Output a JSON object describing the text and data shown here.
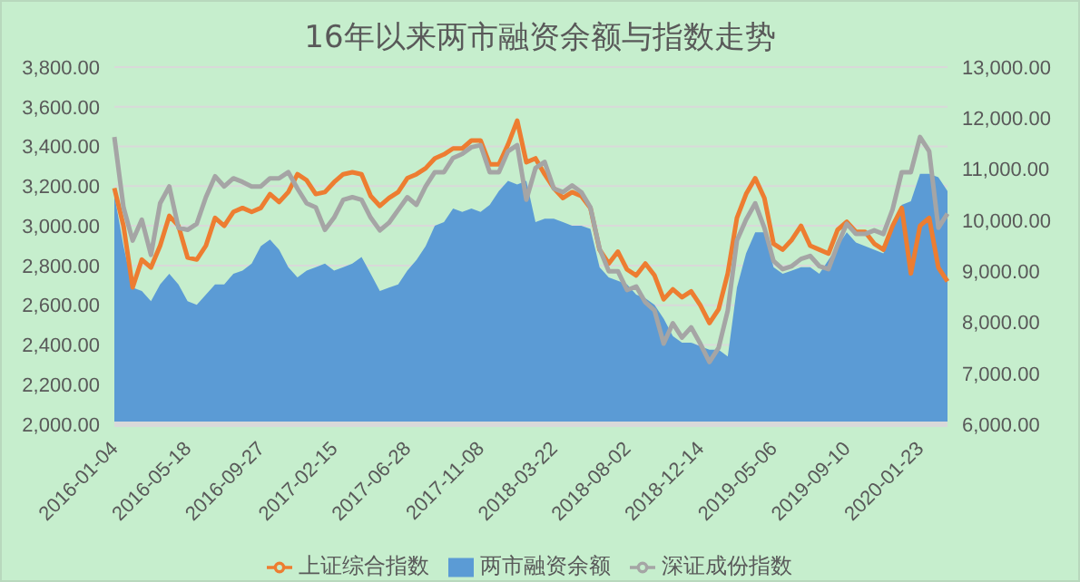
{
  "chart_data": {
    "type": "line",
    "title": "16年以来两市融资余额与指数走势",
    "categories": [
      "2016-01-04",
      null,
      null,
      null,
      null,
      null,
      null,
      null,
      "2016-05-18",
      null,
      null,
      null,
      null,
      null,
      null,
      null,
      "2016-09-27",
      null,
      null,
      null,
      null,
      null,
      null,
      null,
      "2017-02-15",
      null,
      null,
      null,
      null,
      null,
      null,
      null,
      "2017-06-28",
      null,
      null,
      null,
      null,
      null,
      null,
      null,
      "2017-11-08",
      null,
      null,
      null,
      null,
      null,
      null,
      null,
      "2018-03-22",
      null,
      null,
      null,
      null,
      null,
      null,
      null,
      "2018-08-02",
      null,
      null,
      null,
      null,
      null,
      null,
      null,
      "2018-12-14",
      null,
      null,
      null,
      null,
      null,
      null,
      null,
      "2019-05-06",
      null,
      null,
      null,
      null,
      null,
      null,
      null,
      "2019-09-10",
      null,
      null,
      null,
      null,
      null,
      null,
      null,
      "2020-01-23",
      null,
      null,
      null
    ],
    "series": [
      {
        "name": "两市融资余额",
        "type": "area",
        "axis": "y2",
        "color": "#5b9bd5",
        "values": [
          10500,
          9490,
          8680,
          8610,
          8410,
          8740,
          8950,
          8740,
          8410,
          8340,
          8540,
          8740,
          8740,
          8950,
          9010,
          9150,
          9490,
          9620,
          9420,
          9080,
          8880,
          9010,
          9080,
          9150,
          9010,
          9080,
          9150,
          9280,
          8950,
          8610,
          8680,
          8740,
          9010,
          9220,
          9490,
          9890,
          9960,
          10230,
          10160,
          10230,
          10160,
          10300,
          10570,
          10770,
          10700,
          10770,
          9960,
          10030,
          10030,
          9960,
          9890,
          9890,
          9830,
          9080,
          8880,
          8810,
          8740,
          8540,
          8470,
          8340,
          8070,
          7730,
          7600,
          7600,
          7530,
          7460,
          7460,
          7330,
          8680,
          9350,
          9760,
          9760,
          9080,
          8950,
          9010,
          9080,
          9080,
          8950,
          9220,
          9490,
          9760,
          9560,
          9490,
          9420,
          9350,
          9890,
          10300,
          10370,
          10910,
          10910,
          10840,
          10570
        ]
      },
      {
        "name": "上证综合指数",
        "axis": "y",
        "color": "#ed7d31",
        "values": [
          3190,
          3000,
          2690,
          2830,
          2790,
          2900,
          3050,
          3000,
          2840,
          2830,
          2900,
          3040,
          3000,
          3070,
          3090,
          3070,
          3090,
          3160,
          3120,
          3170,
          3260,
          3230,
          3160,
          3170,
          3220,
          3260,
          3270,
          3260,
          3150,
          3100,
          3140,
          3170,
          3240,
          3260,
          3290,
          3340,
          3360,
          3390,
          3390,
          3430,
          3430,
          3310,
          3310,
          3410,
          3530,
          3320,
          3340,
          3260,
          3190,
          3140,
          3170,
          3150,
          3090,
          2880,
          2810,
          2870,
          2780,
          2750,
          2810,
          2750,
          2630,
          2680,
          2640,
          2670,
          2600,
          2510,
          2580,
          2760,
          3040,
          3160,
          3240,
          3140,
          2910,
          2880,
          2930,
          3000,
          2900,
          2880,
          2860,
          2980,
          3020,
          2970,
          2970,
          2910,
          2880,
          3000,
          3090,
          2760,
          3000,
          3040,
          2790,
          2720
        ]
      },
      {
        "name": "深证成份指数",
        "axis": "y2",
        "color": "#a5a5a5",
        "values": [
          11630,
          10250,
          9600,
          10010,
          9320,
          10330,
          10660,
          9850,
          9810,
          9930,
          10450,
          10860,
          10660,
          10820,
          10750,
          10660,
          10660,
          10820,
          10820,
          10940,
          10620,
          10330,
          10250,
          9810,
          10050,
          10400,
          10450,
          10400,
          10050,
          9800,
          9950,
          10200,
          10450,
          10300,
          10660,
          10940,
          10940,
          11220,
          11300,
          11430,
          11470,
          10940,
          10940,
          11350,
          11470,
          10400,
          11020,
          11140,
          10620,
          10550,
          10680,
          10550,
          10250,
          9440,
          9000,
          9000,
          8630,
          8700,
          8390,
          8230,
          7580,
          7980,
          7700,
          7900,
          7580,
          7220,
          7500,
          8230,
          9600,
          10010,
          10330,
          9850,
          9200,
          9040,
          9100,
          9240,
          9300,
          9100,
          9040,
          9520,
          9930,
          9730,
          9730,
          9800,
          9730,
          10210,
          10940,
          10940,
          11630,
          11350,
          9850,
          10130
        ]
      }
    ],
    "ylim": [
      2000,
      3800
    ],
    "yticks": [
      {
        "value": 2000,
        "label": "2,000.00"
      },
      {
        "value": 2200,
        "label": "2,200.00"
      },
      {
        "value": 2400,
        "label": "2,400.00"
      },
      {
        "value": 2600,
        "label": "2,600.00"
      },
      {
        "value": 2800,
        "label": "2,800.00"
      },
      {
        "value": 3000,
        "label": "3,000.00"
      },
      {
        "value": 3200,
        "label": "3,200.00"
      },
      {
        "value": 3400,
        "label": "3,400.00"
      },
      {
        "value": 3600,
        "label": "3,600.00"
      },
      {
        "value": 3800,
        "label": "3,800.00"
      }
    ],
    "y2lim": [
      6000,
      13000
    ],
    "y2ticks": [
      {
        "value": 6000,
        "label": "6,000.00"
      },
      {
        "value": 7000,
        "label": "7,000.00"
      },
      {
        "value": 8000,
        "label": "8,000.00"
      },
      {
        "value": 9000,
        "label": "9,000.00"
      },
      {
        "value": 10000,
        "label": "10,000.00"
      },
      {
        "value": 11000,
        "label": "11,000.00"
      },
      {
        "value": 12000,
        "label": "12,000.00"
      },
      {
        "value": 13000,
        "label": "13,000.00"
      }
    ],
    "grid": "y",
    "legend": "bottom",
    "marker": "none",
    "line_style": "solid"
  }
}
